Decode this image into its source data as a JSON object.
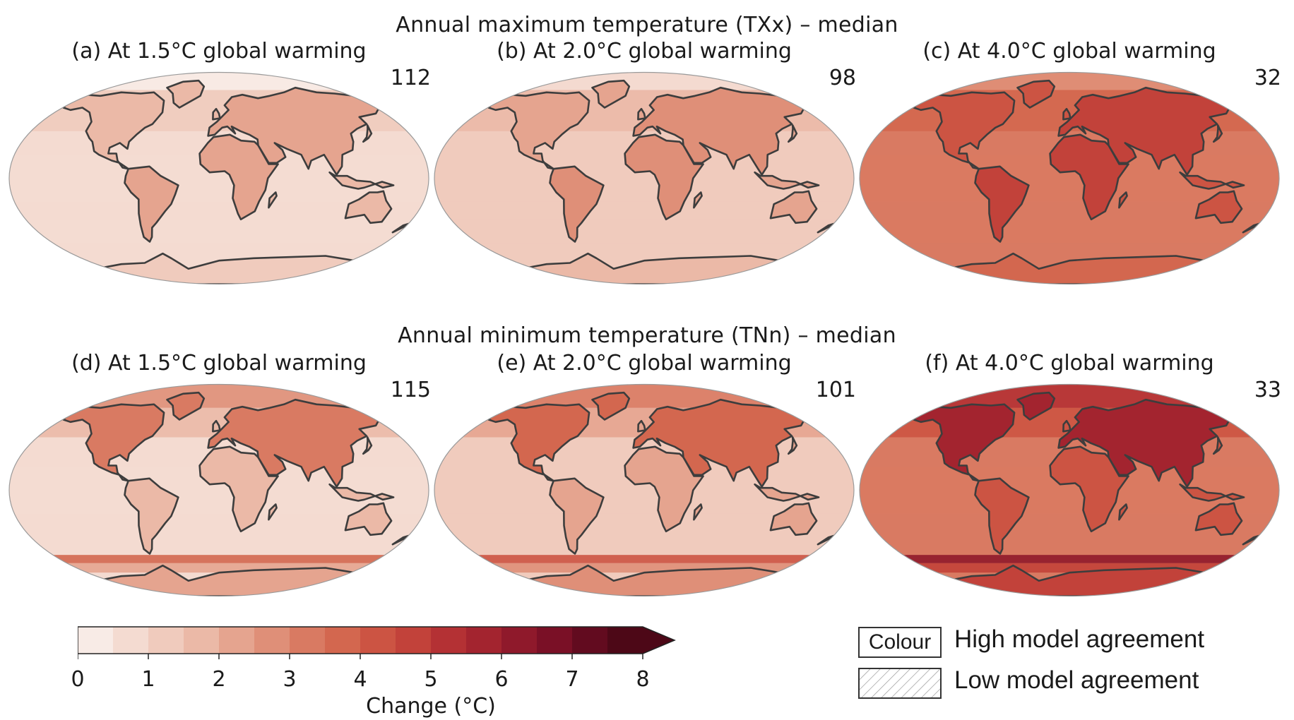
{
  "rows": [
    {
      "title": "Annual maximum temperature (TXx) – median",
      "panels": [
        {
          "label": "(a) At 1.5°C global warming",
          "count": "112",
          "level": 1.1
        },
        {
          "label": "(b) At 2.0°C global warming",
          "count": "98",
          "level": 1.6
        },
        {
          "label": "(c) At 4.0°C global warming",
          "count": "32",
          "level": 3.6
        }
      ]
    },
    {
      "title": "Annual minimum temperature (TNn) – median",
      "panels": [
        {
          "label": "(d) At 1.5°C global warming",
          "count": "115",
          "level": 1.2
        },
        {
          "label": "(e) At 2.0°C global warming",
          "count": "101",
          "level": 1.7
        },
        {
          "label": "(f) At 4.0°C global warming",
          "count": "33",
          "level": 3.7
        }
      ]
    }
  ],
  "colorbar": {
    "label": "Change (°C)",
    "ticks": [
      "0",
      "1",
      "2",
      "3",
      "4",
      "5",
      "6",
      "7",
      "8"
    ],
    "colors": [
      "#f8ebe6",
      "#f4dbd1",
      "#f0cbbd",
      "#ebb9a7",
      "#e5a48f",
      "#df8f78",
      "#d97a62",
      "#d3674f",
      "#cc5443",
      "#c2423a",
      "#b43134",
      "#a3242f",
      "#8f192b",
      "#7a1026",
      "#620b1f",
      "#4d0817"
    ]
  },
  "legend": {
    "colour_box": "Colour",
    "high": "High model agreement",
    "low": "Low model agreement"
  },
  "map_colors": {
    "ocean_base": "#f5dcd2",
    "land_outline": "#3d3d3d",
    "polar_warm": "#a0282a"
  }
}
